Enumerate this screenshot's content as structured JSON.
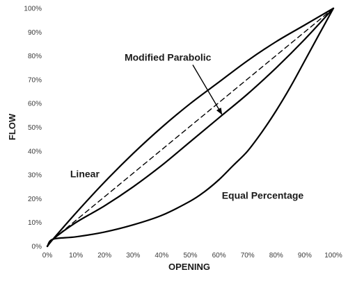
{
  "chart_data": {
    "type": "line",
    "xlabel": "OPENING",
    "ylabel": "FLOW",
    "xlim": [
      0,
      100
    ],
    "ylim": [
      0,
      100
    ],
    "x_ticks": [
      "0%",
      "10%",
      "20%",
      "30%",
      "40%",
      "50%",
      "60%",
      "70%",
      "80%",
      "90%",
      "100%"
    ],
    "y_ticks": [
      "0%",
      "10%",
      "20%",
      "30%",
      "40%",
      "50%",
      "60%",
      "70%",
      "80%",
      "90%",
      "100%"
    ],
    "grid": false,
    "legend": "none",
    "series": [
      {
        "name": "Linear",
        "style": "solid",
        "x": [
          0,
          2,
          10,
          20,
          30,
          40,
          50,
          60,
          70,
          80,
          90,
          100
        ],
        "y": [
          0,
          3,
          14,
          27,
          39,
          50,
          60,
          69,
          78,
          86,
          93,
          100
        ]
      },
      {
        "name": "Modified Parabolic",
        "style": "solid",
        "x": [
          0,
          2,
          10,
          20,
          30,
          40,
          50,
          60,
          70,
          80,
          90,
          100
        ],
        "y": [
          0,
          3,
          10,
          17,
          25,
          34,
          44,
          54,
          64,
          75,
          87,
          100
        ]
      },
      {
        "name": "Equal Percentage",
        "style": "solid",
        "x": [
          0,
          2,
          10,
          20,
          30,
          40,
          50,
          55,
          60,
          65,
          70,
          75,
          80,
          85,
          90,
          95,
          100
        ],
        "y": [
          0,
          3,
          4,
          6,
          9,
          13,
          19,
          23,
          28,
          34,
          40,
          48,
          57,
          67,
          78,
          89,
          100
        ]
      },
      {
        "name": "",
        "style": "dashed",
        "x": [
          2,
          100
        ],
        "y": [
          3,
          100
        ]
      }
    ],
    "annotations": [
      {
        "text": "Modified Parabolic",
        "x": 27,
        "y": 78,
        "arrow_to": [
          61,
          55.5
        ]
      },
      {
        "text": "Linear",
        "x": 8,
        "y": 29
      },
      {
        "text": "Equal Percentage",
        "x": 61,
        "y": 20
      }
    ]
  }
}
